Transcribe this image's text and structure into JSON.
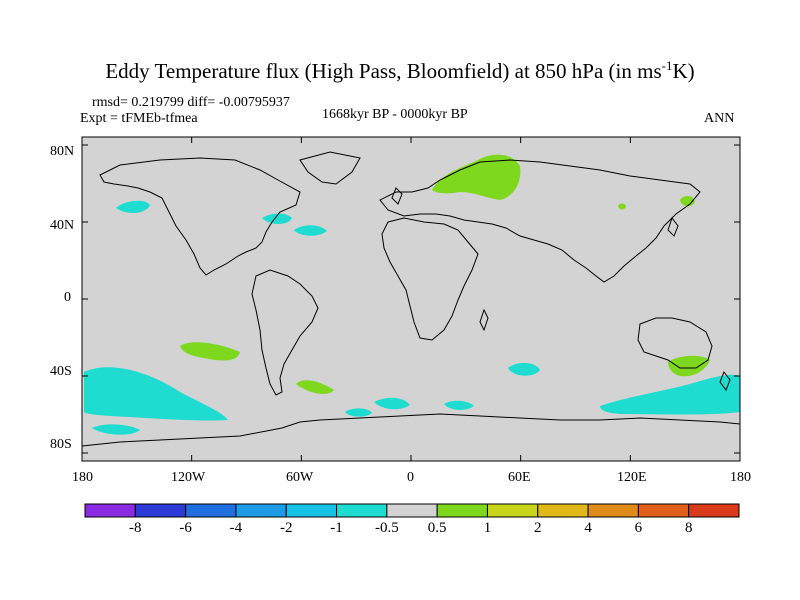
{
  "title": {
    "main": "Eddy Temperature flux (High Pass, Bloomfield) at 850 hPa (in ms",
    "sup": "-1",
    "tail": "K)"
  },
  "stats": {
    "rmsd_diff": "rmsd= 0.219799 diff= -0.00795937",
    "expt": "Expt = tFMEb-tfmea",
    "period": "1668kyr BP - 0000kyr BP",
    "season": "ANN"
  },
  "map": {
    "background_color": "#d3d3d3",
    "lat_ticks": [
      "80N",
      "40N",
      "0",
      "40S",
      "80S"
    ],
    "lon_ticks": [
      "180",
      "120W",
      "60W",
      "0",
      "60E",
      "120E",
      "180"
    ]
  },
  "colorbar": {
    "labels": [
      "-8",
      "-6",
      "-4",
      "-2",
      "-1",
      "-0.5",
      "0.5",
      "1",
      "2",
      "4",
      "6",
      "8"
    ],
    "colors": [
      "#8a2be2",
      "#2d3cd8",
      "#1f6fe0",
      "#1e9be6",
      "#16c1e3",
      "#1edcd0",
      "#d3d3d3",
      "#7ed81e",
      "#c7d61a",
      "#e0b81a",
      "#e08a1a",
      "#e0601a",
      "#d83a1a"
    ]
  },
  "anomaly_colors": {
    "cyan": "#1edcd0",
    "green": "#7ed81e"
  }
}
